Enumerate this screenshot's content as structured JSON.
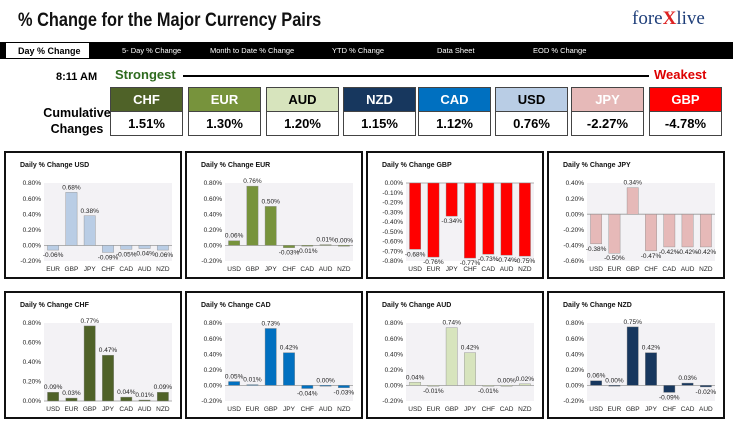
{
  "header": {
    "title": "% Change for the Major Currency Pairs",
    "logo_prefix": "fore",
    "logo_x": "X",
    "logo_suffix": "live"
  },
  "nav": {
    "items": [
      "Day % Change",
      "5- Day % Change",
      "Month to Date % Change",
      "YTD % Change",
      "Data Sheet",
      "EOD % Change"
    ]
  },
  "summary": {
    "time": "8:11 AM",
    "strongest_label": "Strongest",
    "weakest_label": "Weakest",
    "cumulative_label_line1": "Cumulative",
    "cumulative_label_line2": "Changes",
    "currencies": [
      {
        "code": "CHF",
        "value": "1.51%",
        "bg": "#4f6228",
        "fg": "#ffffff"
      },
      {
        "code": "EUR",
        "value": "1.30%",
        "bg": "#77933c",
        "fg": "#ffffff"
      },
      {
        "code": "AUD",
        "value": "1.20%",
        "bg": "#d7e4bd",
        "fg": "#000000"
      },
      {
        "code": "NZD",
        "value": "1.15%",
        "bg": "#17375e",
        "fg": "#ffffff"
      },
      {
        "code": "CAD",
        "value": "1.12%",
        "bg": "#0070c0",
        "fg": "#ffffff"
      },
      {
        "code": "USD",
        "value": "0.76%",
        "bg": "#b9cde5",
        "fg": "#000000"
      },
      {
        "code": "JPY",
        "value": "-2.27%",
        "bg": "#e6b9b8",
        "fg": "#ffffff"
      },
      {
        "code": "GBP",
        "value": "-4.78%",
        "bg": "#ff0000",
        "fg": "#ffffff"
      }
    ]
  },
  "chart_data": [
    {
      "type": "bar",
      "title": "Daily % Change USD",
      "color": "#b9cde5",
      "categories": [
        "EUR",
        "GBP",
        "JPY",
        "CHF",
        "CAD",
        "AUD",
        "NZD"
      ],
      "values": [
        -0.06,
        0.68,
        0.38,
        -0.09,
        -0.05,
        -0.04,
        -0.06
      ],
      "labels": [
        "-0.06%",
        "0.68%",
        "0.38%",
        "-0.09%",
        "-0.05%",
        "-0.04%",
        "-0.06%"
      ],
      "ylim": [
        -0.2,
        0.8
      ],
      "ticks": [
        "-0.20%",
        "0.00%",
        "0.20%",
        "0.40%",
        "0.60%",
        "0.80%"
      ],
      "tickvals": [
        -0.2,
        0,
        0.2,
        0.4,
        0.6,
        0.8
      ]
    },
    {
      "type": "bar",
      "title": "Daily % Change EUR",
      "color": "#77933c",
      "categories": [
        "USD",
        "GBP",
        "JPY",
        "CHF",
        "CAD",
        "AUD",
        "NZD"
      ],
      "values": [
        0.06,
        0.76,
        0.5,
        -0.03,
        -0.01,
        0.01,
        0.0
      ],
      "labels": [
        "0.06%",
        "0.76%",
        "0.50%",
        "-0.03%",
        "-0.01%",
        "0.01%",
        "0.00%"
      ],
      "ylim": [
        -0.2,
        0.8
      ],
      "ticks": [
        "-0.20%",
        "0.00%",
        "0.20%",
        "0.40%",
        "0.60%",
        "0.80%"
      ],
      "tickvals": [
        -0.2,
        0,
        0.2,
        0.4,
        0.6,
        0.8
      ]
    },
    {
      "type": "bar",
      "title": "Daily % Change GBP",
      "color": "#ff0000",
      "categories": [
        "USD",
        "EUR",
        "JPY",
        "CHF",
        "CAD",
        "AUD",
        "NZD"
      ],
      "values": [
        -0.68,
        -0.76,
        -0.34,
        -0.77,
        -0.73,
        -0.74,
        -0.75
      ],
      "labels": [
        "-0.68%",
        "-0.76%",
        "-0.34%",
        "-0.77%",
        "-0.73%",
        "-0.74%",
        "-0.75%"
      ],
      "ylim": [
        -0.8,
        0.0
      ],
      "ticks": [
        "-0.80%",
        "-0.70%",
        "-0.60%",
        "-0.50%",
        "-0.40%",
        "-0.30%",
        "-0.20%",
        "-0.10%",
        "0.00%"
      ],
      "tickvals": [
        -0.8,
        -0.7,
        -0.6,
        -0.5,
        -0.4,
        -0.3,
        -0.2,
        -0.1,
        0
      ]
    },
    {
      "type": "bar",
      "title": "Daily % Change JPY",
      "color": "#e6b9b8",
      "categories": [
        "USD",
        "EUR",
        "GBP",
        "CHF",
        "CAD",
        "AUD",
        "NZD"
      ],
      "values": [
        -0.38,
        -0.5,
        0.34,
        -0.47,
        -0.42,
        -0.42,
        -0.42
      ],
      "labels": [
        "-0.38%",
        "-0.50%",
        "0.34%",
        "-0.47%",
        "-0.42%",
        "-0.42%",
        "-0.42%"
      ],
      "ylim": [
        -0.6,
        0.4
      ],
      "ticks": [
        "-0.60%",
        "-0.40%",
        "-0.20%",
        "0.00%",
        "0.20%",
        "0.40%"
      ],
      "tickvals": [
        -0.6,
        -0.4,
        -0.2,
        0,
        0.2,
        0.4
      ]
    },
    {
      "type": "bar",
      "title": "Daily % Change CHF",
      "color": "#4f6228",
      "categories": [
        "USD",
        "EUR",
        "GBP",
        "JPY",
        "CAD",
        "AUD",
        "NZD"
      ],
      "values": [
        0.09,
        0.03,
        0.77,
        0.47,
        0.04,
        0.01,
        0.09
      ],
      "labels": [
        "0.09%",
        "0.03%",
        "0.77%",
        "0.47%",
        "0.04%",
        "0.01%",
        "0.09%"
      ],
      "ylim": [
        0.0,
        0.8
      ],
      "ticks": [
        "0.00%",
        "0.20%",
        "0.40%",
        "0.60%",
        "0.80%"
      ],
      "tickvals": [
        0,
        0.2,
        0.4,
        0.6,
        0.8
      ]
    },
    {
      "type": "bar",
      "title": "Daily % Change CAD",
      "color": "#0070c0",
      "categories": [
        "USD",
        "EUR",
        "GBP",
        "JPY",
        "CHF",
        "AUD",
        "NZD"
      ],
      "values": [
        0.05,
        0.01,
        0.73,
        0.42,
        -0.04,
        0.0,
        -0.03
      ],
      "labels": [
        "0.05%",
        "0.01%",
        "0.73%",
        "0.42%",
        "-0.04%",
        "0.00%",
        "-0.03%"
      ],
      "ylim": [
        -0.2,
        0.8
      ],
      "ticks": [
        "-0.20%",
        "0.00%",
        "0.20%",
        "0.40%",
        "0.60%",
        "0.80%"
      ],
      "tickvals": [
        -0.2,
        0,
        0.2,
        0.4,
        0.6,
        0.8
      ]
    },
    {
      "type": "bar",
      "title": "Daily % Change AUD",
      "color": "#d7e4bd",
      "categories": [
        "USD",
        "EUR",
        "GBP",
        "JPY",
        "CHF",
        "CAD",
        "NZD"
      ],
      "values": [
        0.04,
        -0.01,
        0.74,
        0.42,
        -0.01,
        0.0,
        0.02
      ],
      "labels": [
        "0.04%",
        "-0.01%",
        "0.74%",
        "0.42%",
        "-0.01%",
        "0.00%",
        "0.02%"
      ],
      "ylim": [
        -0.2,
        0.8
      ],
      "ticks": [
        "-0.20%",
        "0.00%",
        "0.20%",
        "0.40%",
        "0.60%",
        "0.80%"
      ],
      "tickvals": [
        -0.2,
        0,
        0.2,
        0.4,
        0.6,
        0.8
      ]
    },
    {
      "type": "bar",
      "title": "Daily % Change NZD",
      "color": "#17375e",
      "categories": [
        "USD",
        "EUR",
        "GBP",
        "JPY",
        "CHF",
        "CAD",
        "AUD"
      ],
      "values": [
        0.06,
        0.0,
        0.75,
        0.42,
        -0.09,
        0.03,
        -0.02
      ],
      "labels": [
        "0.06%",
        "0.00%",
        "0.75%",
        "0.42%",
        "-0.09%",
        "0.03%",
        "-0.02%"
      ],
      "ylim": [
        -0.2,
        0.8
      ],
      "ticks": [
        "-0.20%",
        "0.00%",
        "0.20%",
        "0.40%",
        "0.60%",
        "0.80%"
      ],
      "tickvals": [
        -0.2,
        0,
        0.2,
        0.4,
        0.6,
        0.8
      ]
    }
  ]
}
